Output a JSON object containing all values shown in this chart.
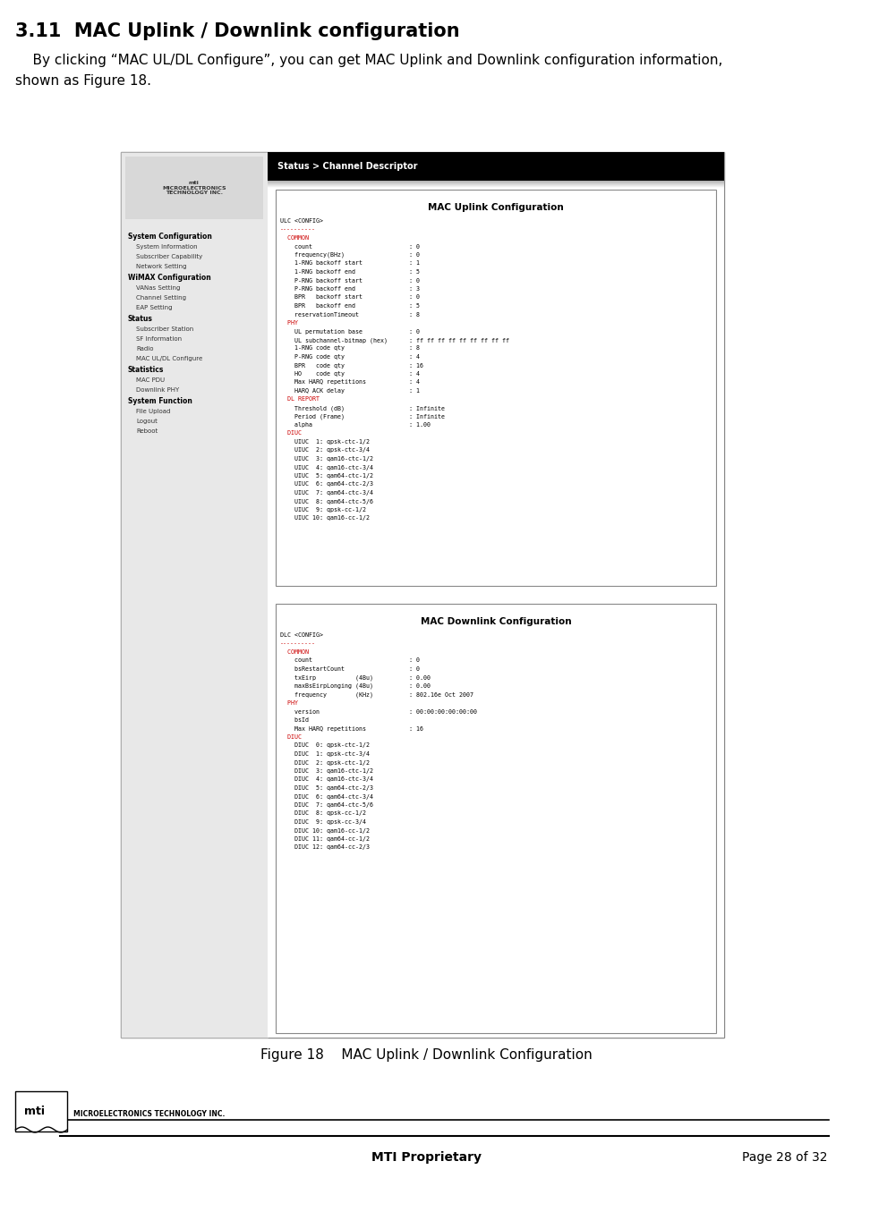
{
  "title": "3.11  MAC Uplink / Downlink configuration",
  "body_text_line1": "    By clicking “MAC UL/DL Configure”, you can get MAC Uplink and Downlink configuration information,",
  "body_text_line2": "shown as Figure 18.",
  "figure_caption": "Figure 18    MAC Uplink / Downlink Configuration",
  "footer_center": "MTI Proprietary",
  "footer_right": "Page 28 of 32",
  "bg_color": "#ffffff",
  "text_color": "#000000",
  "title_fontsize": 15,
  "body_fontsize": 11,
  "caption_fontsize": 11,
  "footer_fontsize": 10,
  "nav_header": "Status > Channel Descriptor",
  "ul_config_title": "MAC Uplink Configuration",
  "ul_config_text": [
    "ULC <CONFIG>",
    "----------",
    "  COMMON",
    "    count                           : 0",
    "    frequency(BHz)                  : 0",
    "    1-RNG backoff start             : 1",
    "    1-RNG backoff end               : 5",
    "    P-RNG backoff start             : 0",
    "    P-RNG backoff end               : 3",
    "    BPR   backoff start             : 0",
    "    BPR   backoff end               : 5",
    "    reservationTimeout              : 8",
    "  PHY",
    "    UL permutation base             : 0",
    "    UL subchannel-bitmap (hex)      : ff ff ff ff ff ff ff ff ff",
    "    1-RNG code qty                  : 8",
    "    P-RNG code qty                  : 4",
    "    BPR   code qty                  : 16",
    "    HO    code qty                  : 4",
    "    Max HARQ repetitions            : 4",
    "    HARQ ACK delay                  : 1",
    "  DL REPORT",
    "    Threshold (dB)                  : Infinite",
    "    Period (Frame)                  : Infinite",
    "    alpha                           : 1.00",
    "  DIUC",
    "    UIUC  1: qpsk-ctc-1/2",
    "    UIUC  2: qpsk-ctc-3/4",
    "    UIUC  3: qam16-ctc-1/2",
    "    UIUC  4: qam16-ctc-3/4",
    "    UIUC  5: qam64-ctc-1/2",
    "    UIUC  6: qam64-ctc-2/3",
    "    UIUC  7: qam64-ctc-3/4",
    "    UIUC  8: qam64-ctc-5/6",
    "    UIUC  9: qpsk-cc-1/2",
    "    UIUC 10: qam16-cc-1/2"
  ],
  "dl_config_title": "MAC Downlink Configuration",
  "dl_config_text": [
    "DLC <CONFIG>",
    "----------",
    "  COMMON",
    "    count                           : 0",
    "    bsRestartCount                  : 0",
    "    txEirp           (4Bu)          : 0.00",
    "    maxBsEirpLonging (4Bu)          : 0.00",
    "    frequency        (KHz)          : 802.16e Oct 2007",
    "  PHY",
    "    version                         : 00:00:00:00:00:00",
    "    bsId",
    "    Max HARQ repetitions            : 16",
    "  DIUC",
    "    DIUC  0: qpsk-ctc-1/2",
    "    DIUC  1: qpsk-ctc-3/4",
    "    DIUC  2: qpsk-ctc-1/2",
    "    DIUC  3: qam16-ctc-1/2",
    "    DIUC  4: qam16-ctc-3/4",
    "    DIUC  5: qam64-ctc-2/3",
    "    DIUC  6: qam64-ctc-3/4",
    "    DIUC  7: qam64-ctc-5/6",
    "    DIUC  8: qpsk-cc-1/2",
    "    DIUC  9: qpsk-cc-3/4",
    "    DIUC 10: qam16-cc-1/2",
    "    DIUC 11: qam64-cc-1/2",
    "    DIUC 12: qam64-cc-2/3"
  ],
  "nav_items_top": [
    "System Configuration",
    "> System Information",
    "> Subscriber Capability",
    "> Network Setting",
    "WiMAX Configuration",
    "> VANas Setting",
    "> Channel Setting",
    "> EAP Setting",
    "Status",
    "> Subscriber Station",
    "> SF Information",
    "> Radio",
    "> MAC UL/DL Configure",
    "Statistics",
    "> MAC PDU",
    "> Downlink PHY",
    "System Function",
    "> File Upload",
    "> Logout",
    "> Reboot"
  ]
}
